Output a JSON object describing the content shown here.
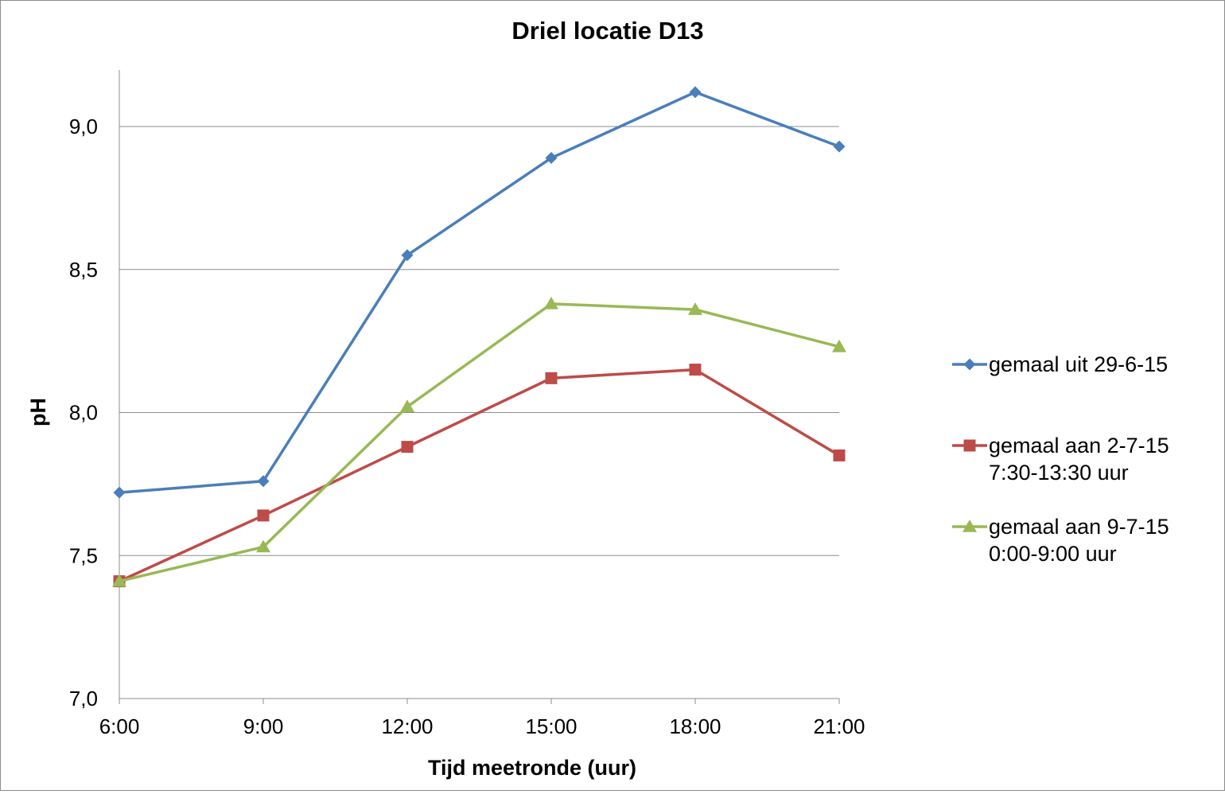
{
  "chart_data": {
    "type": "line",
    "title": "Driel locatie D13",
    "xlabel": "Tijd meetronde (uur)",
    "ylabel": "pH",
    "categories": [
      "6:00",
      "9:00",
      "12:00",
      "15:00",
      "18:00",
      "21:00"
    ],
    "ylim": [
      7.0,
      9.2
    ],
    "yticks": [
      "7,0",
      "7,5",
      "8,0",
      "8,5",
      "9,0"
    ],
    "ytick_values": [
      7.0,
      7.5,
      8.0,
      8.5,
      9.0
    ],
    "grid": "horizontal",
    "legend_position": "right",
    "series": [
      {
        "name": "gemaal uit 29-6-15",
        "name_lines": [
          "gemaal uit 29-6-15"
        ],
        "values": [
          7.72,
          7.76,
          8.55,
          8.89,
          9.12,
          8.93
        ],
        "color": "#4a7ebb",
        "marker": "diamond"
      },
      {
        "name": "gemaal aan 2-7-15 7:30-13:30 uur",
        "name_lines": [
          "gemaal aan 2-7-15",
          "7:30-13:30 uur"
        ],
        "values": [
          7.41,
          7.64,
          7.88,
          8.12,
          8.15,
          7.85
        ],
        "color": "#be4b48",
        "marker": "square"
      },
      {
        "name": "gemaal aan 9-7-15 0:00-9:00 uur",
        "name_lines": [
          "gemaal aan 9-7-15",
          "0:00-9:00 uur"
        ],
        "values": [
          7.41,
          7.53,
          8.02,
          8.38,
          8.36,
          8.23
        ],
        "color": "#98b954",
        "marker": "triangle"
      }
    ]
  }
}
